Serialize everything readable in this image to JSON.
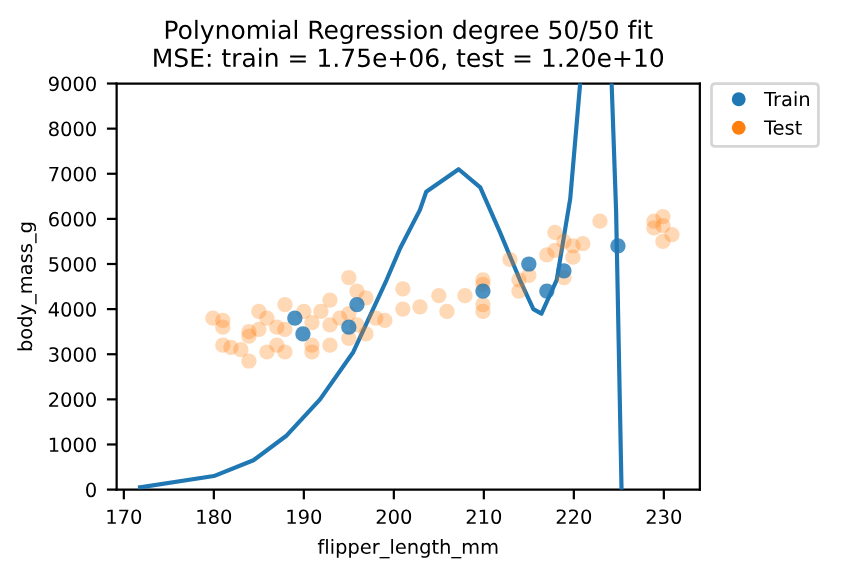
{
  "chart_data": {
    "type": "scatter",
    "title": "Polynomial Regression degree 50/50 fit\nMSE: train = 1.75e+06, test = 1.20e+10",
    "xlabel": "flipper_length_mm",
    "ylabel": "body_mass_g",
    "xlim": [
      169.2,
      234
    ],
    "ylim": [
      0,
      9000
    ],
    "xticks": [
      170,
      180,
      190,
      200,
      210,
      220,
      230
    ],
    "yticks": [
      0,
      1000,
      2000,
      3000,
      4000,
      5000,
      6000,
      7000,
      8000,
      9000
    ],
    "grid": false,
    "legend": "top right",
    "marker": "circle",
    "series": [
      {
        "type": "line",
        "marker": "none",
        "color": "#1f77b4",
        "x": [
          171.8,
          180,
          184.4,
          188.1,
          191.8,
          195.5,
          199.2,
          200.7,
          202.9,
          203.6,
          207.2,
          209.6,
          211.8,
          214,
          215.5,
          216.4,
          218.1,
          219.6,
          220.7,
          222,
          224.2,
          224.7,
          225.3
        ],
        "values": [
          50,
          300,
          650,
          1200,
          2000,
          3050,
          4650,
          5350,
          6200,
          6600,
          7100,
          6700,
          5700,
          4650,
          4000,
          3900,
          4650,
          6450,
          9000,
          null,
          9000,
          6150,
          0
        ]
      },
      {
        "name": "Test",
        "color": "#ff7f0e",
        "x": [
          179.9,
          181,
          181,
          181,
          181.9,
          183,
          183.9,
          183.9,
          183.9,
          185,
          185.9,
          185.9,
          185,
          187,
          187,
          187.9,
          187.9,
          187.9,
          190,
          190.9,
          190.9,
          190.9,
          191.9,
          192.9,
          192.9,
          192.9,
          194,
          195,
          195,
          195,
          195.9,
          195.9,
          196.9,
          196.9,
          198,
          199,
          201,
          201,
          202.9,
          205,
          205.9,
          207.9,
          209.9,
          209.9,
          209.9,
          209.9,
          212.9,
          213.9,
          213.9,
          215,
          217.9,
          217,
          217.9,
          218.9,
          218.9,
          219.9,
          219.9,
          221,
          222.9,
          228.9,
          228.9,
          229.9,
          229.9,
          229.9,
          230.9
        ],
        "values": [
          3800,
          3750,
          3600,
          3200,
          3150,
          3100,
          3500,
          3400,
          2850,
          3950,
          3800,
          3050,
          3550,
          3600,
          3200,
          4100,
          3550,
          3050,
          3950,
          3700,
          3200,
          3050,
          3950,
          4200,
          3650,
          3200,
          3800,
          4700,
          3900,
          3350,
          4400,
          3650,
          4250,
          3450,
          3800,
          3750,
          4450,
          4000,
          4050,
          4300,
          3950,
          4300,
          4650,
          4550,
          4100,
          3950,
          5100,
          4650,
          4400,
          4750,
          5700,
          5200,
          5300,
          5500,
          4700,
          5400,
          5150,
          5450,
          5950,
          5950,
          5800,
          6050,
          5850,
          5500,
          5650
        ]
      },
      {
        "name": "Train",
        "color": "#1f77b4",
        "x": [
          189,
          189.9,
          195,
          195.9,
          209.9,
          215,
          217,
          218.9,
          224.9
        ],
        "values": [
          3800,
          3450,
          3600,
          4100,
          4400,
          5000,
          4400,
          4850,
          5400
        ]
      }
    ]
  }
}
